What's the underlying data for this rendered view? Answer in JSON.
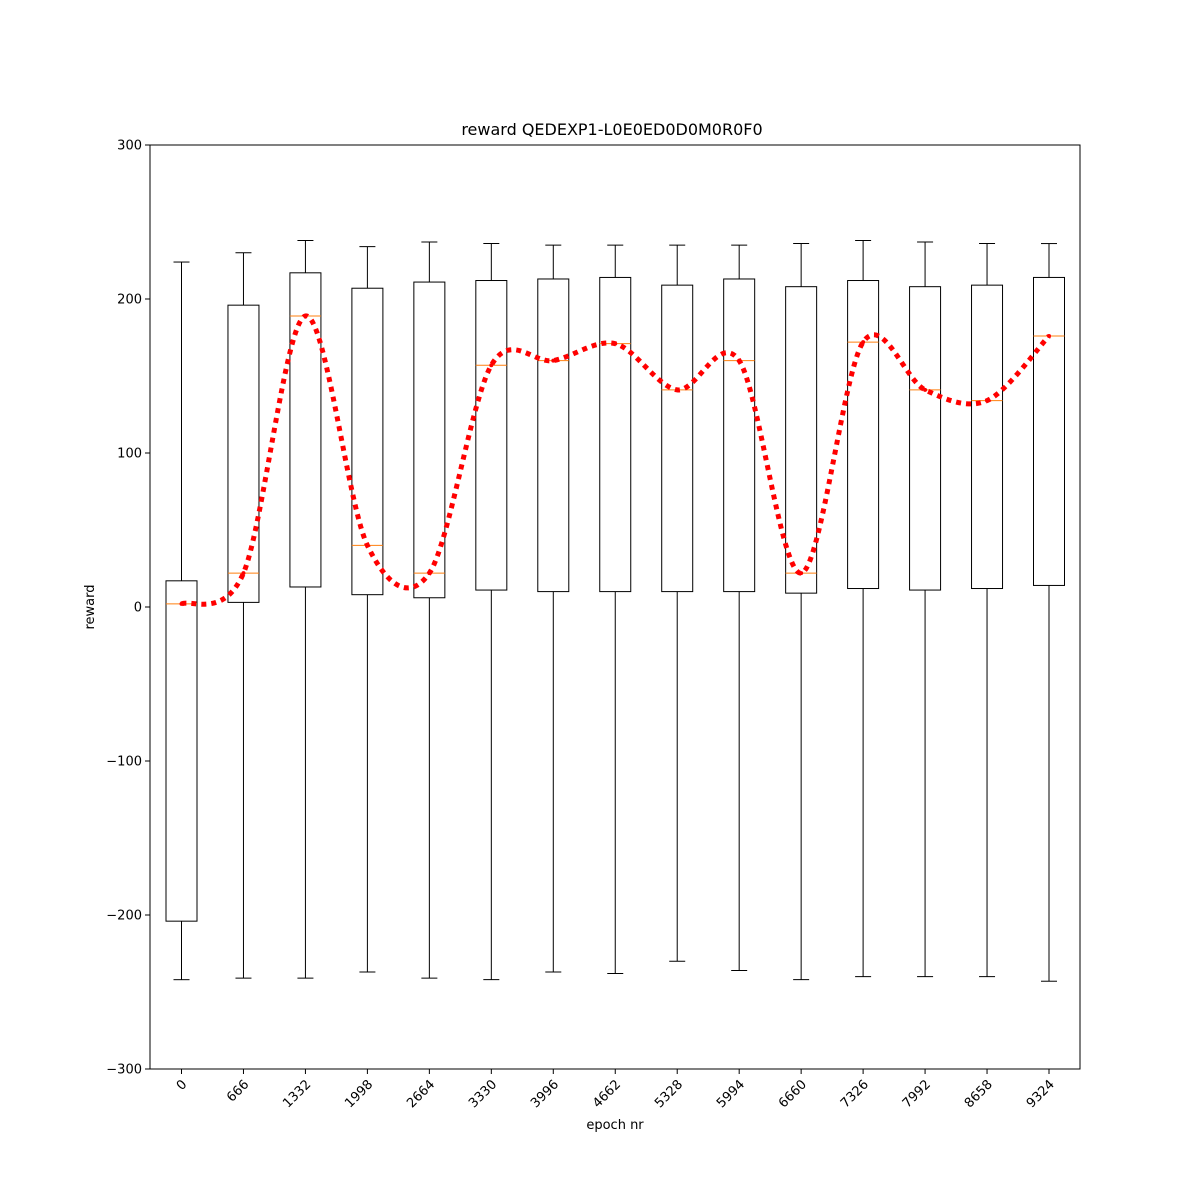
{
  "chart_data": {
    "type": "box",
    "title": "reward QEDEXP1-L0E0ED0D0M0R0F0",
    "xlabel": "epoch nr",
    "ylabel": "reward",
    "ylim": [
      -300,
      300
    ],
    "yticks": [
      -300,
      -200,
      -100,
      0,
      100,
      200,
      300
    ],
    "grid": false,
    "categories": [
      "0",
      "666",
      "1332",
      "1998",
      "2664",
      "3330",
      "3996",
      "4662",
      "5328",
      "5994",
      "6660",
      "7326",
      "7992",
      "8658",
      "9324"
    ],
    "boxes": [
      {
        "whisker_low": -242,
        "q1": -204,
        "median": 2,
        "q3": 17,
        "whisker_high": 224
      },
      {
        "whisker_low": -241,
        "q1": 3,
        "median": 22,
        "q3": 196,
        "whisker_high": 230
      },
      {
        "whisker_low": -241,
        "q1": 13,
        "median": 189,
        "q3": 217,
        "whisker_high": 238
      },
      {
        "whisker_low": -237,
        "q1": 8,
        "median": 40,
        "q3": 207,
        "whisker_high": 234
      },
      {
        "whisker_low": -241,
        "q1": 6,
        "median": 22,
        "q3": 211,
        "whisker_high": 237
      },
      {
        "whisker_low": -242,
        "q1": 11,
        "median": 157,
        "q3": 212,
        "whisker_high": 236
      },
      {
        "whisker_low": -237,
        "q1": 10,
        "median": 160,
        "q3": 213,
        "whisker_high": 235
      },
      {
        "whisker_low": -238,
        "q1": 10,
        "median": 171,
        "q3": 214,
        "whisker_high": 235
      },
      {
        "whisker_low": -230,
        "q1": 10,
        "median": 141,
        "q3": 209,
        "whisker_high": 235
      },
      {
        "whisker_low": -236,
        "q1": 10,
        "median": 160,
        "q3": 213,
        "whisker_high": 235
      },
      {
        "whisker_low": -242,
        "q1": 9,
        "median": 22,
        "q3": 208,
        "whisker_high": 236
      },
      {
        "whisker_low": -240,
        "q1": 12,
        "median": 172,
        "q3": 212,
        "whisker_high": 238
      },
      {
        "whisker_low": -240,
        "q1": 11,
        "median": 141,
        "q3": 208,
        "whisker_high": 237
      },
      {
        "whisker_low": -240,
        "q1": 12,
        "median": 134,
        "q3": 209,
        "whisker_high": 236
      },
      {
        "whisker_low": -243,
        "q1": 14,
        "median": 176,
        "q3": 214,
        "whisker_high": 236
      }
    ],
    "trend_line": {
      "style": "dotted",
      "color": "#ff0000",
      "values": [
        2,
        22,
        189,
        40,
        22,
        157,
        160,
        171,
        141,
        160,
        22,
        172,
        141,
        134,
        176
      ]
    },
    "colors": {
      "box": "#000000",
      "median": "#ff7f0e",
      "trend": "#ff0000"
    }
  }
}
